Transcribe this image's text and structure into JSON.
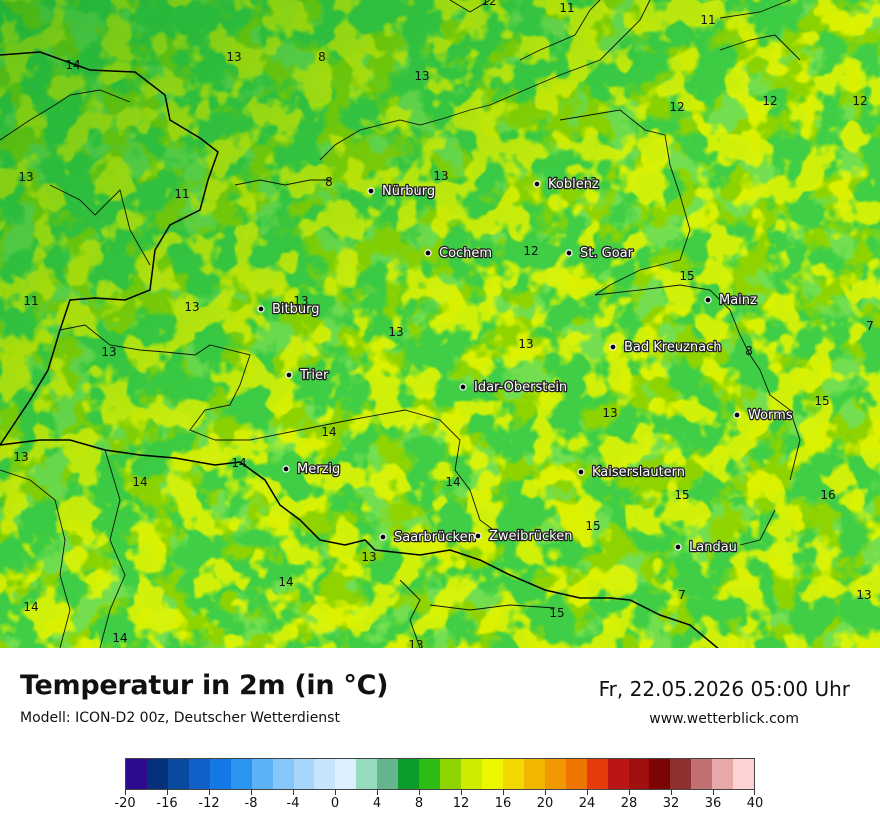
{
  "map": {
    "cities": [
      {
        "name": "Nürburg"
      },
      {
        "name": "Koblenz"
      },
      {
        "name": "Cochem"
      },
      {
        "name": "St. Goar"
      },
      {
        "name": "Mainz"
      },
      {
        "name": "Bitburg"
      },
      {
        "name": "Bad Kreuznach"
      },
      {
        "name": "Trier"
      },
      {
        "name": "Idar-Oberstein"
      },
      {
        "name": "Worms"
      },
      {
        "name": "Merzig"
      },
      {
        "name": "Kaiserslautern"
      },
      {
        "name": "Saarbrücken"
      },
      {
        "name": "Zweibrücken"
      },
      {
        "name": "Landau"
      }
    ],
    "temperature_labels": [
      "12",
      "11",
      "11",
      "14",
      "13",
      "8",
      "13",
      "12",
      "12",
      "12",
      "13",
      "8",
      "13",
      "13",
      "11",
      "12",
      "15",
      "11",
      "13",
      "13",
      "7",
      "13",
      "13",
      "8",
      "13",
      "13",
      "15",
      "14",
      "14",
      "13",
      "14",
      "14",
      "15",
      "16",
      "15",
      "14",
      "13",
      "15",
      "7",
      "13",
      "14",
      "14",
      "13"
    ]
  },
  "title": "Temperatur in 2m (in °C)",
  "subtitle": "Modell: ICON-D2 00z, Deutscher Wetterdienst",
  "datetime": "Fr, 22.05.2026 05:00 Uhr",
  "website": "www.wetterblick.com",
  "legend": {
    "colors": [
      "#2e0a8e",
      "#06307a",
      "#0a4a9e",
      "#1160c8",
      "#1478e6",
      "#2a96f0",
      "#5cb2f6",
      "#86c6f8",
      "#a8d6fa",
      "#c6e4fc",
      "#ddeffd",
      "#96ddbf",
      "#66b48d",
      "#0c9c2c",
      "#2cbc14",
      "#8ed400",
      "#cdec00",
      "#ecf800",
      "#f2d800",
      "#f2b600",
      "#f29800",
      "#ee7400",
      "#e63a0a",
      "#ba1616",
      "#a01010",
      "#7c0404",
      "#8c3030",
      "#c07070",
      "#e6a8a8",
      "#fdd2d2"
    ],
    "tick_labels": [
      "-20",
      "-16",
      "-12",
      "-8",
      "-4",
      "0",
      "4",
      "8",
      "12",
      "16",
      "20",
      "24",
      "28",
      "32",
      "36",
      "40"
    ]
  }
}
